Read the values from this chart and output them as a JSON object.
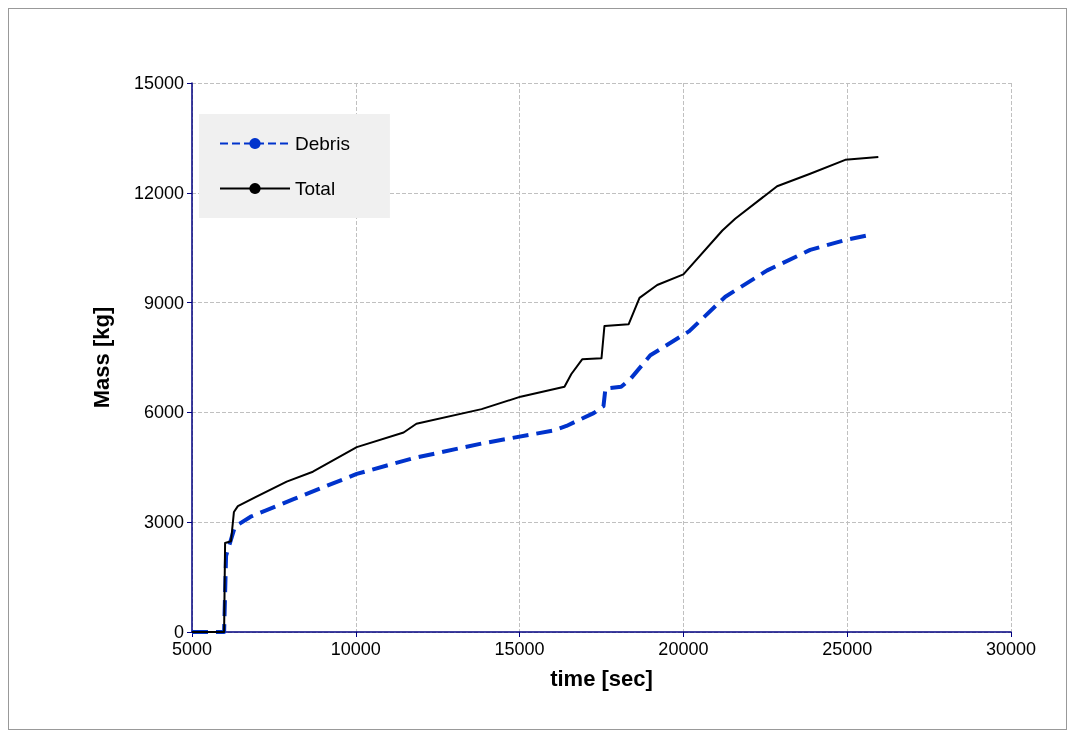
{
  "chart_data": {
    "type": "line",
    "xlabel": "time [sec]",
    "ylabel": "Mass [kg]",
    "xlim": [
      5000,
      30000
    ],
    "xticks": [
      5000,
      10000,
      15000,
      20000,
      25000,
      30000
    ],
    "ylim": [
      0,
      15000
    ],
    "yticks": [
      0,
      3000,
      6000,
      9000,
      12000,
      15000
    ],
    "grid": true,
    "legend": "top left",
    "marker": "none",
    "series": [
      {
        "name": "Debris",
        "color": "#0033cc",
        "line_style": "dashed",
        "x": [
          5000,
          5980,
          6040,
          6310,
          6790,
          8100,
          10030,
          11760,
          13840,
          16010,
          16430,
          17260,
          17560,
          17620,
          18100,
          18390,
          18990,
          20180,
          21280,
          22560,
          23870,
          24940,
          25650
        ],
        "values": [
          0,
          0,
          2080,
          2880,
          3150,
          3630,
          4320,
          4750,
          5150,
          5500,
          5630,
          5980,
          6170,
          6650,
          6700,
          6920,
          7560,
          8220,
          9160,
          9880,
          10440,
          10710,
          10840
        ]
      },
      {
        "name": "Total",
        "color": "#000000",
        "line_style": "solid",
        "x": [
          5000,
          5980,
          6010,
          6190,
          6280,
          6400,
          7890,
          8690,
          10030,
          11460,
          11850,
          13840,
          15030,
          16370,
          16580,
          16910,
          17500,
          17590,
          18330,
          18660,
          19200,
          20000,
          21190,
          21580,
          22860,
          23870,
          24940,
          25950
        ],
        "values": [
          0,
          0,
          2430,
          2480,
          3280,
          3440,
          4110,
          4380,
          5050,
          5450,
          5690,
          6090,
          6430,
          6700,
          7050,
          7450,
          7480,
          8360,
          8410,
          9130,
          9480,
          9770,
          10970,
          11290,
          12180,
          12520,
          12900,
          12980
        ]
      }
    ]
  }
}
